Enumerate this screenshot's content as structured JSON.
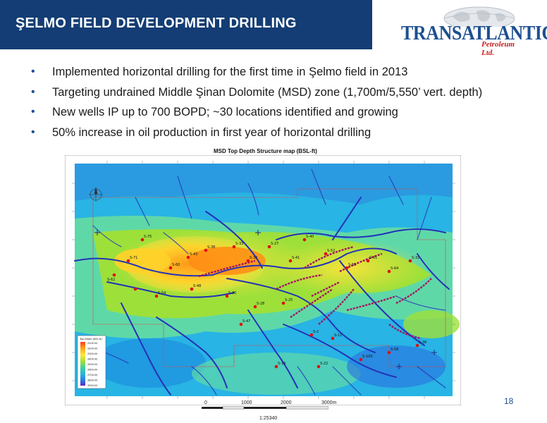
{
  "slide": {
    "title": "ŞELMO FIELD DEVELOPMENT DRILLING",
    "page_number": "18"
  },
  "logo": {
    "name": "TRANSATLANTIC",
    "subtitle": "Petroleum Ltd."
  },
  "bullets": [
    "Implemented horizontal drilling for the first time in Şelmo field in 2013",
    "Targeting undrained Middle Şinan Dolomite (MSD) zone (1,700m/5,550’ vert. depth)",
    "New wells IP up to 700 BOPD; ~30 locations identified and growing",
    "50% increase in oil production in first year of horizontal drilling"
  ],
  "map": {
    "title": "MSD Top Depth Structure map (BSL-ft)",
    "scale_labels": [
      "0",
      "1000",
      "2000",
      "3000m"
    ],
    "scale_ratio": "1:25340",
    "legend_title": "Top Depth (BSL-ft)",
    "legend_values": [
      "-3100.00",
      "-3200.00",
      "-3300.00",
      "-3400.00",
      "-3500.00",
      "-3600.00",
      "-3700.00",
      "-3800.00",
      "-3900.00"
    ],
    "well_labels": [
      "S-75",
      "S-71",
      "S-62",
      "S-60",
      "S-43",
      "S-38",
      "S-33",
      "S-32",
      "S-27",
      "S-41",
      "S-40",
      "S-52",
      "S-55",
      "S-61",
      "S-64",
      "S-31",
      "S-30",
      "S-28",
      "S-25",
      "S-2",
      "S-11",
      "S-100",
      "S-58",
      "S-36",
      "S-54",
      "S-48",
      "S-22",
      "S-19",
      "S-47"
    ]
  },
  "colors": {
    "banner": "#133d74",
    "accent_blue": "#1d4f91",
    "logo_red": "#c81e1e",
    "fault_line": "#2432b8",
    "well_dot": "#e01010",
    "horizontal_well": "#a3155e"
  }
}
